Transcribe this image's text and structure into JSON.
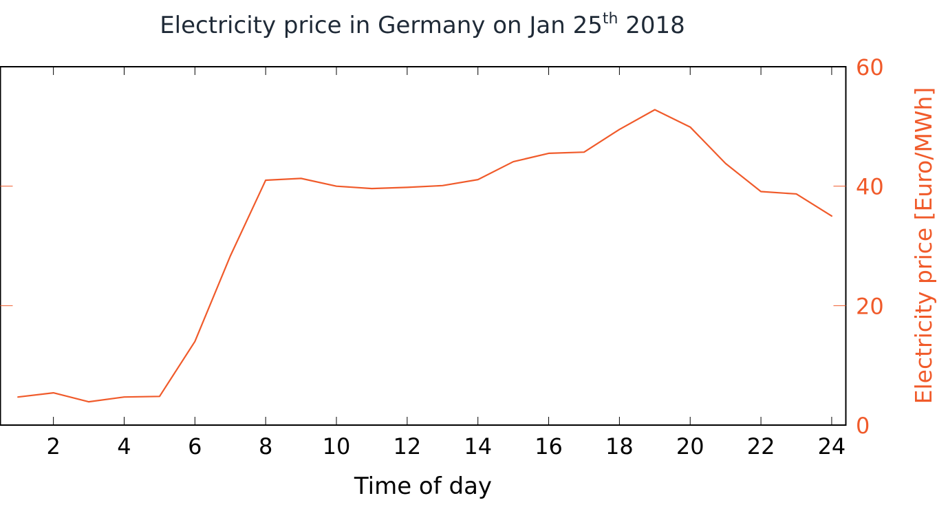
{
  "chart_data": {
    "type": "line",
    "title": {
      "main": "Electricity price in Germany on Jan 25",
      "superscript": "th",
      "year": " 2018"
    },
    "xlabel": "Time of day",
    "ylabel": "Electricity price [Euro/MWh]",
    "xlim": [
      0.5,
      24.4
    ],
    "ylim": [
      0,
      60
    ],
    "x_ticks": [
      2,
      4,
      6,
      8,
      10,
      12,
      14,
      16,
      18,
      20,
      22,
      24
    ],
    "x_tick_labels": [
      "2",
      "4",
      "6",
      "8",
      "10",
      "12",
      "14",
      "16",
      "18",
      "20",
      "22",
      "24"
    ],
    "y_ticks": [
      0,
      20,
      40,
      60
    ],
    "y_tick_labels": [
      "0",
      "20",
      "40",
      "60"
    ],
    "y_axis_side": "right",
    "grid": false,
    "series": [
      {
        "x": [
          1,
          2,
          3,
          4,
          5,
          6,
          7,
          8,
          9,
          10,
          11,
          12,
          13,
          14,
          15,
          16,
          17,
          18,
          19,
          20,
          21,
          22,
          23,
          24
        ],
        "values": [
          4.7,
          5.4,
          3.9,
          4.7,
          4.8,
          14.0,
          28.3,
          41.0,
          41.3,
          40.0,
          39.6,
          39.8,
          40.1,
          41.1,
          44.1,
          45.5,
          45.7,
          49.5,
          52.8,
          49.9,
          43.8,
          39.1,
          38.7,
          35.0
        ]
      }
    ],
    "colors": {
      "line": "#f05a2a",
      "accent_axis": "#f05a2a",
      "frame": "#000000",
      "title": "#1f2a37"
    }
  }
}
